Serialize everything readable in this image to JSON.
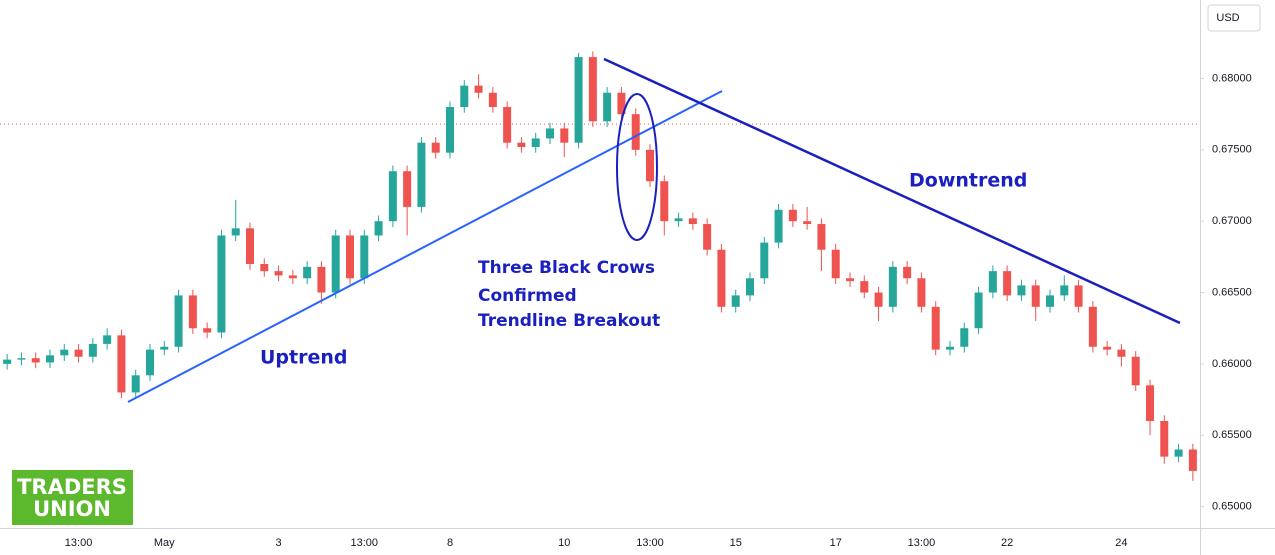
{
  "chart_data": {
    "type": "candlestick",
    "currency": "USD",
    "categories": [
      null,
      null,
      null,
      null,
      null,
      "13:00",
      null,
      null,
      null,
      null,
      null,
      "May",
      null,
      null,
      null,
      null,
      null,
      null,
      null,
      "3",
      null,
      null,
      null,
      null,
      null,
      "13:00",
      null,
      null,
      null,
      null,
      null,
      "8",
      null,
      null,
      null,
      null,
      null,
      null,
      null,
      "10",
      null,
      null,
      null,
      null,
      null,
      "13:00",
      null,
      null,
      null,
      null,
      null,
      "15",
      null,
      null,
      null,
      null,
      null,
      null,
      "17",
      null,
      null,
      null,
      null,
      null,
      "13:00",
      null,
      null,
      null,
      null,
      null,
      "22",
      null,
      null,
      null,
      null,
      null,
      null,
      null,
      "24",
      null,
      null,
      null,
      null,
      null
    ],
    "open": [
      0.66,
      0.6603,
      0.6604,
      0.6601,
      0.6606,
      0.661,
      0.6605,
      0.6614,
      0.662,
      0.658,
      0.6592,
      0.661,
      0.6612,
      0.6648,
      0.6625,
      0.6622,
      0.669,
      0.6695,
      0.667,
      0.6665,
      0.6662,
      0.666,
      0.6668,
      0.665,
      0.669,
      0.666,
      0.669,
      0.67,
      0.6735,
      0.671,
      0.6755,
      0.6748,
      0.678,
      0.6795,
      0.679,
      0.678,
      0.6755,
      0.6752,
      0.6758,
      0.6765,
      0.6755,
      0.6815,
      0.677,
      0.679,
      0.6775,
      0.675,
      0.6728,
      0.67,
      0.6702,
      0.6698,
      0.668,
      0.664,
      0.6648,
      0.666,
      0.6685,
      0.6708,
      0.67,
      0.6698,
      0.668,
      0.666,
      0.6658,
      0.665,
      0.664,
      0.6668,
      0.666,
      0.664,
      0.661,
      0.6612,
      0.6625,
      0.665,
      0.6665,
      0.6648,
      0.6655,
      0.664,
      0.6648,
      0.6655,
      0.664,
      0.6612,
      0.661,
      0.6605,
      0.6585,
      0.656,
      0.6535,
      0.654
    ],
    "high": [
      0.6607,
      0.6608,
      0.6608,
      0.661,
      0.6614,
      0.6614,
      0.6618,
      0.6625,
      0.6624,
      0.6596,
      0.6614,
      0.6616,
      0.6652,
      0.6652,
      0.6629,
      0.6694,
      0.6715,
      0.6699,
      0.6674,
      0.6669,
      0.6666,
      0.6672,
      0.6672,
      0.6694,
      0.6694,
      0.6694,
      0.6704,
      0.6739,
      0.6739,
      0.6759,
      0.6759,
      0.6784,
      0.6799,
      0.6803,
      0.6794,
      0.6784,
      0.6759,
      0.6762,
      0.6769,
      0.6769,
      0.6818,
      0.6819,
      0.6794,
      0.6794,
      0.6779,
      0.6754,
      0.6732,
      0.6706,
      0.6706,
      0.6702,
      0.6684,
      0.6652,
      0.6664,
      0.6689,
      0.6712,
      0.6712,
      0.671,
      0.6702,
      0.6684,
      0.6664,
      0.6662,
      0.6654,
      0.6672,
      0.6672,
      0.6664,
      0.6644,
      0.6616,
      0.6629,
      0.6654,
      0.6669,
      0.6669,
      0.6659,
      0.6659,
      0.6652,
      0.6662,
      0.6659,
      0.6644,
      0.6616,
      0.6614,
      0.6609,
      0.6589,
      0.6564,
      0.6544,
      0.6544
    ],
    "low": [
      0.6596,
      0.6599,
      0.6597,
      0.6597,
      0.6602,
      0.6601,
      0.6601,
      0.661,
      0.6576,
      0.6576,
      0.6588,
      0.6606,
      0.6608,
      0.6621,
      0.6618,
      0.6618,
      0.6686,
      0.6666,
      0.6661,
      0.6658,
      0.6656,
      0.6656,
      0.6642,
      0.6646,
      0.6656,
      0.6656,
      0.6686,
      0.6696,
      0.669,
      0.6706,
      0.6744,
      0.6744,
      0.6776,
      0.6786,
      0.6776,
      0.6751,
      0.6748,
      0.6748,
      0.6754,
      0.6745,
      0.6751,
      0.6766,
      0.6766,
      0.6771,
      0.6746,
      0.6724,
      0.669,
      0.6696,
      0.6694,
      0.6676,
      0.6636,
      0.6636,
      0.6644,
      0.6656,
      0.6681,
      0.6696,
      0.6694,
      0.6665,
      0.6656,
      0.6654,
      0.6646,
      0.663,
      0.6636,
      0.6656,
      0.6636,
      0.6606,
      0.6606,
      0.6608,
      0.6621,
      0.6646,
      0.6644,
      0.6644,
      0.663,
      0.6636,
      0.6644,
      0.6636,
      0.6608,
      0.6606,
      0.6598,
      0.6581,
      0.655,
      0.653,
      0.6531,
      0.6518
    ],
    "close": [
      0.6603,
      0.6604,
      0.6601,
      0.6606,
      0.661,
      0.6605,
      0.6614,
      0.662,
      0.658,
      0.6592,
      0.661,
      0.6612,
      0.6648,
      0.6625,
      0.6622,
      0.669,
      0.6695,
      0.667,
      0.6665,
      0.6662,
      0.666,
      0.6668,
      0.665,
      0.669,
      0.666,
      0.669,
      0.67,
      0.6735,
      0.671,
      0.6755,
      0.6748,
      0.678,
      0.6795,
      0.679,
      0.678,
      0.6755,
      0.6752,
      0.6758,
      0.6765,
      0.6755,
      0.6815,
      0.677,
      0.679,
      0.6775,
      0.675,
      0.6728,
      0.67,
      0.6702,
      0.6698,
      0.668,
      0.664,
      0.6648,
      0.666,
      0.6685,
      0.6708,
      0.67,
      0.6698,
      0.668,
      0.666,
      0.6658,
      0.665,
      0.664,
      0.6668,
      0.666,
      0.664,
      0.661,
      0.6612,
      0.6625,
      0.665,
      0.6665,
      0.6648,
      0.6655,
      0.664,
      0.6648,
      0.6655,
      0.664,
      0.6612,
      0.661,
      0.6605,
      0.6585,
      0.656,
      0.6535,
      0.654,
      0.6525
    ],
    "up_color": "#26a69a",
    "down_color": "#ef5350",
    "price_line": 0.6768,
    "ylim": [
      0.6485,
      0.6855
    ],
    "yticks": [
      {
        "value": 0.65,
        "label": "0.65000"
      },
      {
        "value": 0.655,
        "label": "0.65500"
      },
      {
        "value": 0.66,
        "label": "0.66000"
      },
      {
        "value": 0.665,
        "label": "0.66500"
      },
      {
        "value": 0.67,
        "label": "0.67000"
      },
      {
        "value": 0.675,
        "label": "0.67500"
      },
      {
        "value": 0.68,
        "label": "0.68000"
      }
    ],
    "annotations": {
      "pattern": [
        "Three Black Crows",
        "Confirmed",
        "Trendline Breakout"
      ],
      "uptrend": "Uptrend",
      "downtrend": "Downtrend"
    },
    "logo": [
      "TRADERS",
      "UNION"
    ]
  }
}
